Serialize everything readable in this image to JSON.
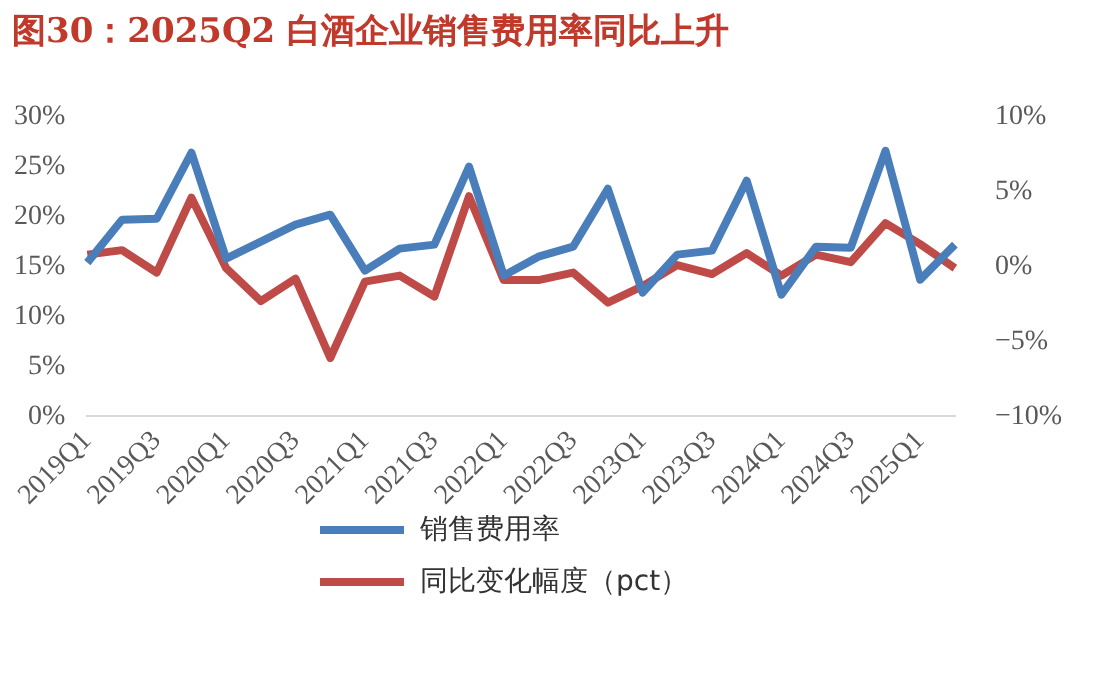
{
  "chart_data": {
    "type": "line",
    "title": "图30：2025Q2 白酒企业销售费用率同比上升",
    "categories": [
      "2019Q1",
      null,
      "2019Q3",
      null,
      "2020Q1",
      null,
      "2020Q3",
      null,
      "2021Q1",
      null,
      "2021Q3",
      null,
      "2022Q1",
      null,
      "2022Q3",
      null,
      "2023Q1",
      null,
      "2023Q3",
      null,
      "2024Q1",
      null,
      "2024Q3",
      null,
      "2025Q1",
      null
    ],
    "series": [
      {
        "name": "销售费用率",
        "color": "#4a7ebb",
        "values": [
          15.4,
          19.7,
          19.8,
          26.4,
          15.8,
          17.5,
          19.2,
          20.2,
          14.6,
          16.8,
          17.2,
          25.0,
          14.1,
          16.0,
          17.0,
          22.8,
          12.4,
          16.2,
          16.6,
          23.6,
          12.2,
          17.0,
          16.9,
          26.6,
          13.7,
          17.2
        ]
      },
      {
        "name": "同比变化幅度（pct）",
        "color": "#be4b48",
        "axis": "y2",
        "values": [
          0.8,
          1.1,
          -0.4,
          4.6,
          -0.1,
          -2.3,
          -0.8,
          -6.1,
          -1.0,
          -0.6,
          -2.0,
          4.7,
          -0.9,
          -0.9,
          -0.4,
          -2.4,
          -1.3,
          0.1,
          -0.5,
          0.9,
          -0.6,
          0.8,
          0.3,
          2.9,
          1.5,
          -0.1
        ]
      }
    ],
    "ylim": [
      0,
      30
    ],
    "yticks": [
      {
        "value": 0,
        "label": "0%"
      },
      {
        "value": 5,
        "label": "5%"
      },
      {
        "value": 10,
        "label": "10%"
      },
      {
        "value": 15,
        "label": "15%"
      },
      {
        "value": 20,
        "label": "20%"
      },
      {
        "value": 25,
        "label": "25%"
      },
      {
        "value": 30,
        "label": "30%"
      }
    ],
    "y2lim": [
      -10,
      10
    ],
    "y2ticks": [
      {
        "value": -10,
        "label": "−10%"
      },
      {
        "value": -5,
        "label": "−5%"
      },
      {
        "value": 0,
        "label": "0%"
      },
      {
        "value": 5,
        "label": "5%"
      },
      {
        "value": 10,
        "label": "10%"
      }
    ],
    "grid": false,
    "legend": "bottom",
    "marker": "none",
    "line_style": "solid"
  }
}
